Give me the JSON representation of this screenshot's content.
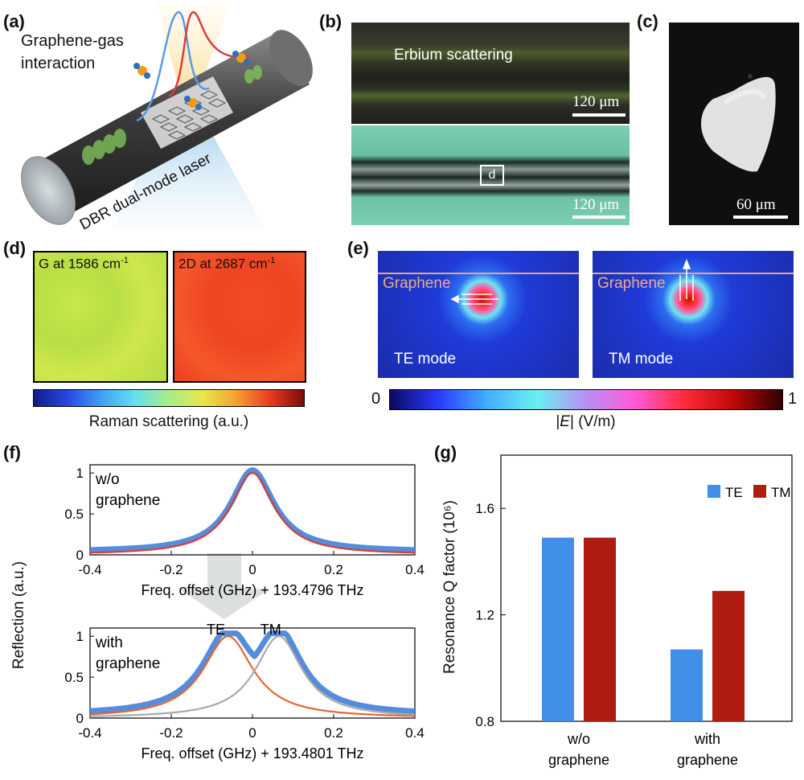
{
  "panel_labels": [
    "(a)",
    "(b)",
    "(c)",
    "(d)",
    "(e)",
    "(f)",
    "(g)"
  ],
  "a": {
    "graphene_gas": "Graphene-gas",
    "interaction": "interaction",
    "laser_label": "DBR dual-mode laser"
  },
  "b": {
    "top_label": "Erbium scattering",
    "top_scale": "120 μm",
    "box_label": "d",
    "bottom_scale": "120 μm"
  },
  "c": {
    "scale": "60 μm"
  },
  "d": {
    "map1_label": "G at 1586 cm",
    "map1_sup": "-1",
    "map2_label": "2D at 2687 cm",
    "map2_sup": "-1",
    "colorbar_label": "Raman scattering (a.u.)"
  },
  "e": {
    "te_graphene": "Graphene",
    "te_mode": "TE mode",
    "tm_graphene": "Graphene",
    "tm_mode": "TM mode",
    "cb_min": "0",
    "cb_max": "1",
    "cb_label_pre": "|",
    "cb_label_E": "E",
    "cb_label_post": "| (V/m)"
  },
  "f": {
    "ylabel": "Reflection (a.u.)",
    "top_note1": "w/o",
    "top_note2": "graphene",
    "top_xlabel": "Freq. offset (GHz) + 193.4796 THz",
    "bot_note1": "with",
    "bot_note2": "graphene",
    "bot_te": "TE",
    "bot_tm": "TM",
    "bot_xlabel": "Freq. offset (GHz) + 193.4801 THz",
    "xticks": [
      "-0.4",
      "-0.2",
      "0",
      "0.2",
      "0.4"
    ],
    "yticks": [
      "0",
      "0.5",
      "1"
    ]
  },
  "colors": {
    "te_blue": "#3f8fe8",
    "tm_red": "#b01c12",
    "fit_red": "#e03b30",
    "fit_orange": "#e5662f",
    "fit_gray": "#a9a9a9",
    "marker_blue": "#4c86d9"
  },
  "chart_data": [
    {
      "type": "line",
      "panel": "f-top",
      "xlabel": "Freq. offset (GHz) + 193.4796 THz",
      "ylabel": "Reflection (a.u.)",
      "xlim": [
        -0.4,
        0.4
      ],
      "ylim": [
        0,
        1.1
      ],
      "series": [
        {
          "kind": "measured",
          "x": [
            -0.4,
            -0.3,
            -0.2,
            -0.15,
            -0.1,
            -0.05,
            0,
            0.05,
            0.1,
            0.15,
            0.2,
            0.3,
            0.4
          ],
          "y": [
            0.04,
            0.07,
            0.17,
            0.3,
            0.55,
            0.85,
            1.0,
            0.85,
            0.55,
            0.3,
            0.17,
            0.07,
            0.04
          ]
        },
        {
          "kind": "fit",
          "center": 0.0,
          "fwhm": 0.13,
          "amplitude": 1.0
        }
      ]
    },
    {
      "type": "line",
      "panel": "f-bottom",
      "xlabel": "Freq. offset (GHz) + 193.4801 THz",
      "ylabel": "Reflection (a.u.)",
      "xlim": [
        -0.4,
        0.4
      ],
      "ylim": [
        0,
        1.1
      ],
      "series": [
        {
          "name": "TE",
          "kind": "fit",
          "center": -0.06,
          "fwhm": 0.15,
          "amplitude": 1.0
        },
        {
          "name": "TM",
          "kind": "fit",
          "center": 0.065,
          "fwhm": 0.14,
          "amplitude": 1.0
        },
        {
          "kind": "measured",
          "x": [
            -0.4,
            -0.2,
            -0.1,
            -0.06,
            0,
            0.065,
            0.15,
            0.2,
            0.4
          ],
          "y": [
            0.04,
            0.2,
            0.75,
            1.0,
            0.72,
            1.0,
            0.55,
            0.3,
            0.04
          ]
        }
      ]
    },
    {
      "type": "bar",
      "panel": "g",
      "ylabel": "Resonance Q factor (10⁶)",
      "ylim": [
        0.8,
        1.8
      ],
      "yticks": [
        "0.8",
        "1.2",
        "1.6"
      ],
      "categories": [
        "w/o\ngraphene",
        "with\ngraphene"
      ],
      "series": [
        {
          "name": "TE",
          "values": [
            1.49,
            1.07
          ]
        },
        {
          "name": "TM",
          "values": [
            1.49,
            1.29
          ]
        }
      ],
      "legend": "top-right"
    }
  ]
}
